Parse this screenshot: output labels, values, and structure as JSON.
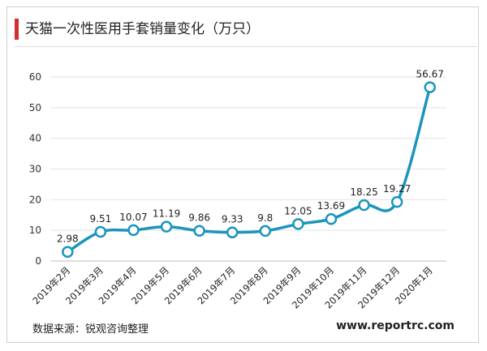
{
  "header": {
    "title": "天猫一次性医用手套销量变化（万只）",
    "accent_color": "#d32f2f"
  },
  "footer": {
    "source": "数据来源：锐观咨询整理",
    "site": "www.reportrc.com"
  },
  "chart_data": {
    "type": "line",
    "smooth": true,
    "title": "天猫一次性医用手套销量变化（万只）",
    "xlabel": "",
    "ylabel": "",
    "categories": [
      "2019年2月",
      "2019年3月",
      "2019年4月",
      "2019年5月",
      "2019年6月",
      "2019年7月",
      "2019年8月",
      "2019年9月",
      "2019年10月",
      "2019年11月",
      "2019年12月",
      "2020年1月"
    ],
    "series": [
      {
        "values": [
          2.98,
          9.51,
          10.07,
          11.19,
          9.86,
          9.33,
          9.8,
          12.05,
          13.69,
          18.25,
          19.27,
          56.67
        ],
        "labels": [
          "2.98",
          "9.51",
          "10.07",
          "11.19",
          "9.86",
          "9.33",
          "9.8",
          "12.05",
          "13.69",
          "18.25",
          "19.27",
          "56.67"
        ],
        "color": "#1b95bd"
      }
    ],
    "ylim": [
      0,
      60
    ],
    "yticks": [
      0,
      10,
      20,
      30,
      40,
      50,
      60
    ],
    "grid": true,
    "legend": "none"
  }
}
